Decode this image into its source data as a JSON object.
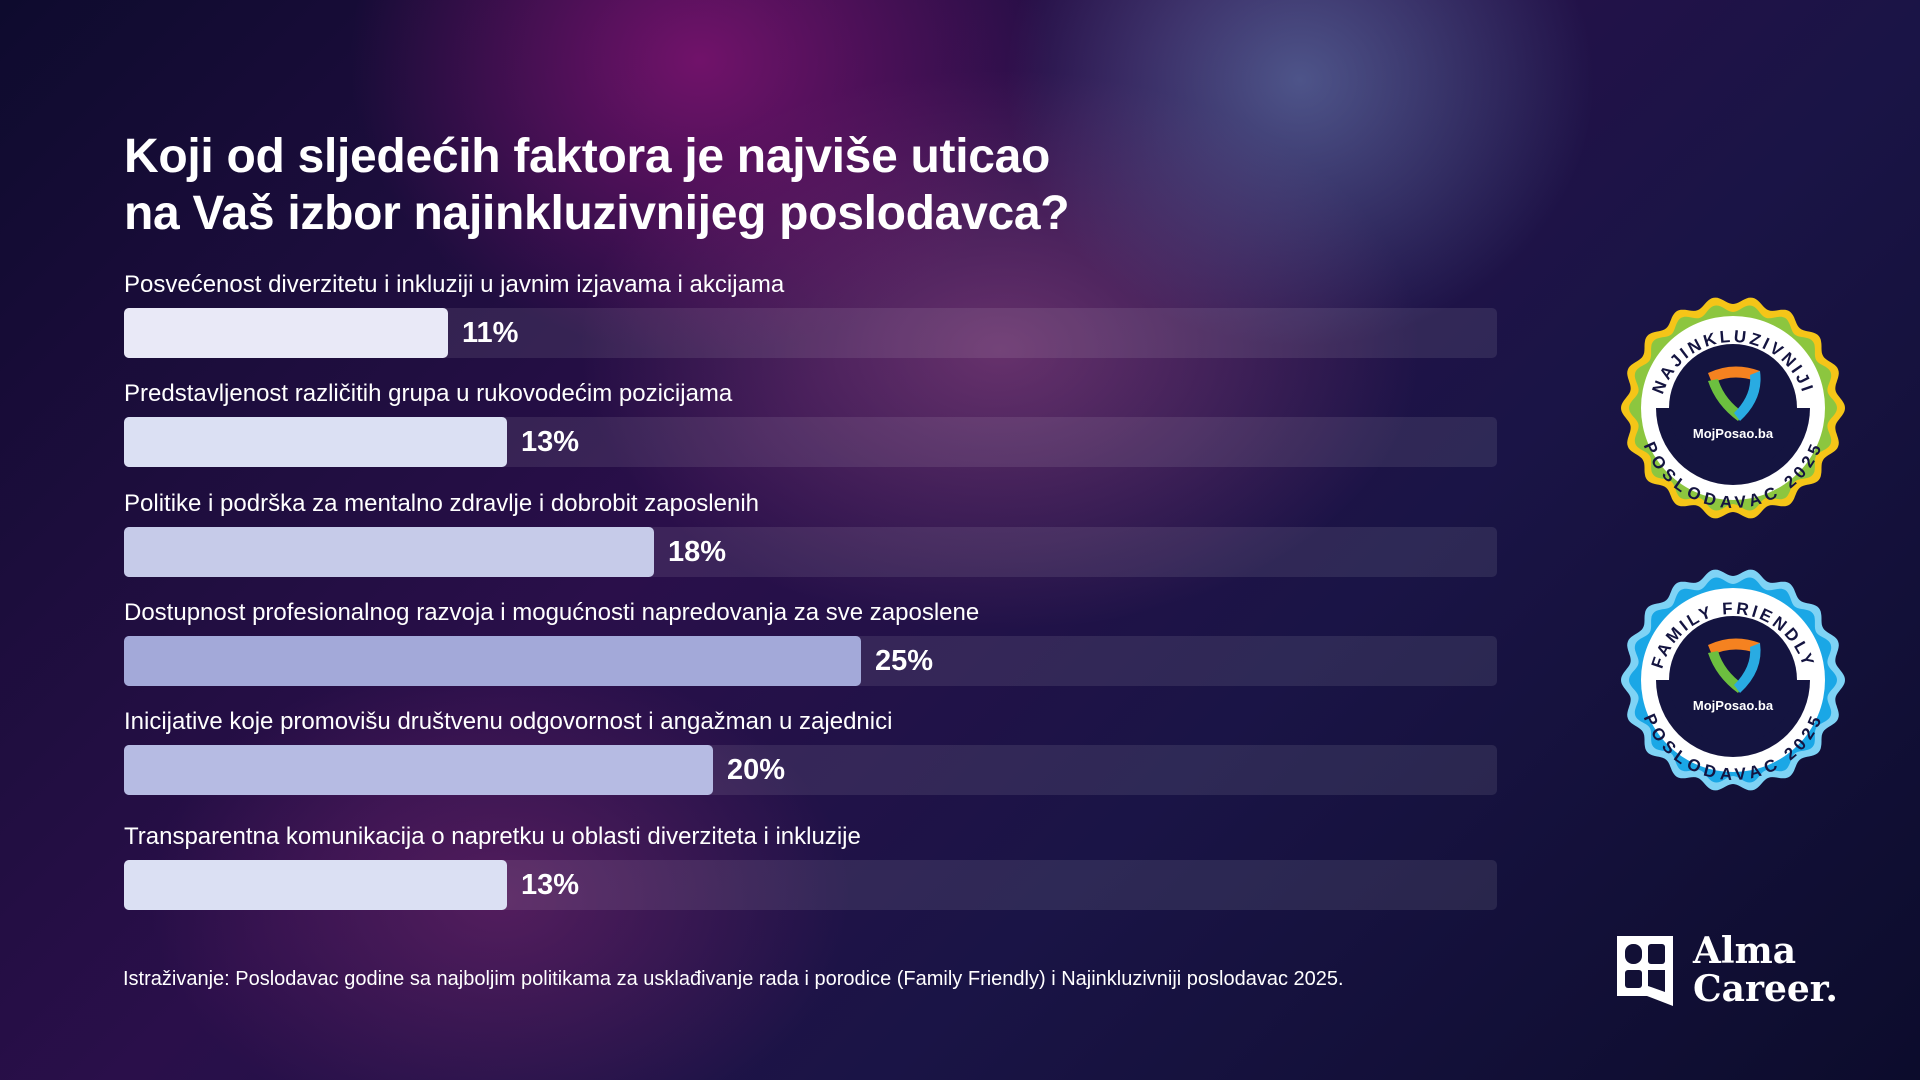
{
  "chart_data": {
    "type": "bar",
    "orientation": "horizontal",
    "title": "Koji od sljedećih faktora je najviše uticao na Vaš izbor najinkluzivnijeg poslodavca?",
    "title_lines": [
      "Koji od sljedećih faktora je najviše uticao",
      "na Vaš izbor najinkluzivnijeg poslodavca?"
    ],
    "categories": [
      "Posvećenost diverzitetu i inkluziji u javnim izjavama i akcijama",
      "Predstavljenost različitih grupa u rukovodećim pozicijama",
      "Politike i podrška za mentalno zdravlje i dobrobit zaposlenih",
      "Dostupnost profesionalnog razvoja i mogućnosti napredovanja za sve zaposlene",
      "Inicijative koje promovišu društvenu odgovornost i angažman u zajednici",
      "Transparentna komunikacija o napretku u oblasti diverziteta i inkluzije"
    ],
    "values": [
      11,
      13,
      18,
      25,
      20,
      13
    ],
    "value_labels": [
      "11%",
      "13%",
      "18%",
      "25%",
      "20%",
      "13%"
    ],
    "xlim": [
      0,
      46.6
    ],
    "colors": [
      "#e9e9f7",
      "#dbe0f3",
      "#c6cbe9",
      "#a3a9d9",
      "#b6bbe3",
      "#dbe0f3"
    ]
  },
  "footnote": "Istraživanje: Poslodavac godine sa najboljim politikama za usklađivanje rada i porodice (Family Friendly) i Najinkluzivniji poslodavac 2025.",
  "badges": [
    {
      "top": "NAJINKLUZIVNIJI",
      "brand": "MojPosao.ba",
      "bottom": "POSLODAVAC 2025",
      "ring_colors": [
        "#f5c518",
        "#8cc63f"
      ]
    },
    {
      "top": "FAMILY FRIENDLY",
      "brand": "MojPosao.ba",
      "bottom": "POSLODAVAC 2025",
      "ring_colors": [
        "#7fd3f5",
        "#1aa7e6"
      ]
    }
  ],
  "logo": {
    "line1": "Alma",
    "line2": "Career."
  }
}
